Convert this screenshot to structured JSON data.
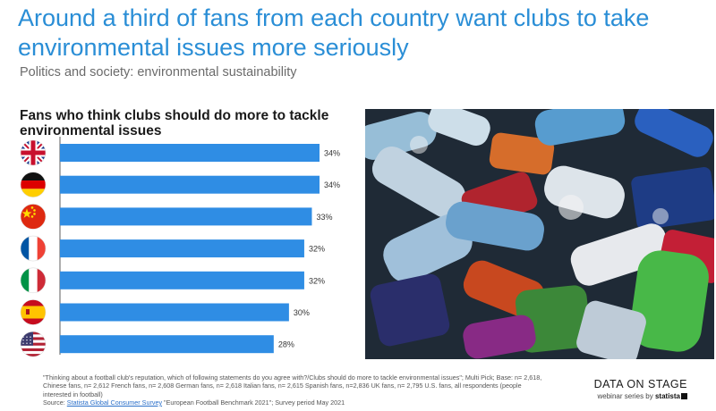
{
  "header": {
    "headline": "Around a third of fans from each country want clubs to take environmental issues more seriously",
    "subheadline": "Politics and society: environmental sustainability"
  },
  "chart_data": {
    "type": "bar",
    "orientation": "horizontal",
    "title": "Fans who think clubs should do more to tackle environmental issues",
    "categories": [
      "UK",
      "Germany",
      "China",
      "France",
      "Italy",
      "Spain",
      "U.S."
    ],
    "values": [
      34,
      34,
      33,
      32,
      32,
      30,
      28
    ],
    "value_labels": [
      "34%",
      "34%",
      "33%",
      "32%",
      "32%",
      "30%",
      "28%"
    ],
    "unit": "%",
    "category_icons": [
      "uk-flag-icon",
      "germany-flag-icon",
      "china-flag-icon",
      "france-flag-icon",
      "italy-flag-icon",
      "spain-flag-icon",
      "usa-flag-icon"
    ],
    "bar_color": "#2f8de4",
    "grid": false,
    "legend": "none"
  },
  "photo": {
    "icon": "plastic-bottles-photo"
  },
  "footnote": {
    "question": "\"Thinking about a football club's reputation, which of following statements do you agree with?/Clubs should do more to tackle environmental issues\"; Multi Pick; Base: n= 2,618, Chinese fans, n= 2,612 French fans, n= 2,608 German fans, n= 2,618 Italian fans, n= 2,615 Spanish fans, n=2,836 UK fans, n= 2,795 U.S. fans, all respondents (people interested in football)",
    "source_label": "Source: ",
    "source_link": "Statista Global Consumer Survey",
    "source_rest": " \"European Football Benchmark 2021\"; Survey period May 2021"
  },
  "brand": {
    "title": "DATA ON STAGE",
    "subtitle": "webinar series by ",
    "company": "statista"
  },
  "colors": {
    "accent": "#2a8ed6",
    "bar": "#2f8de4"
  }
}
